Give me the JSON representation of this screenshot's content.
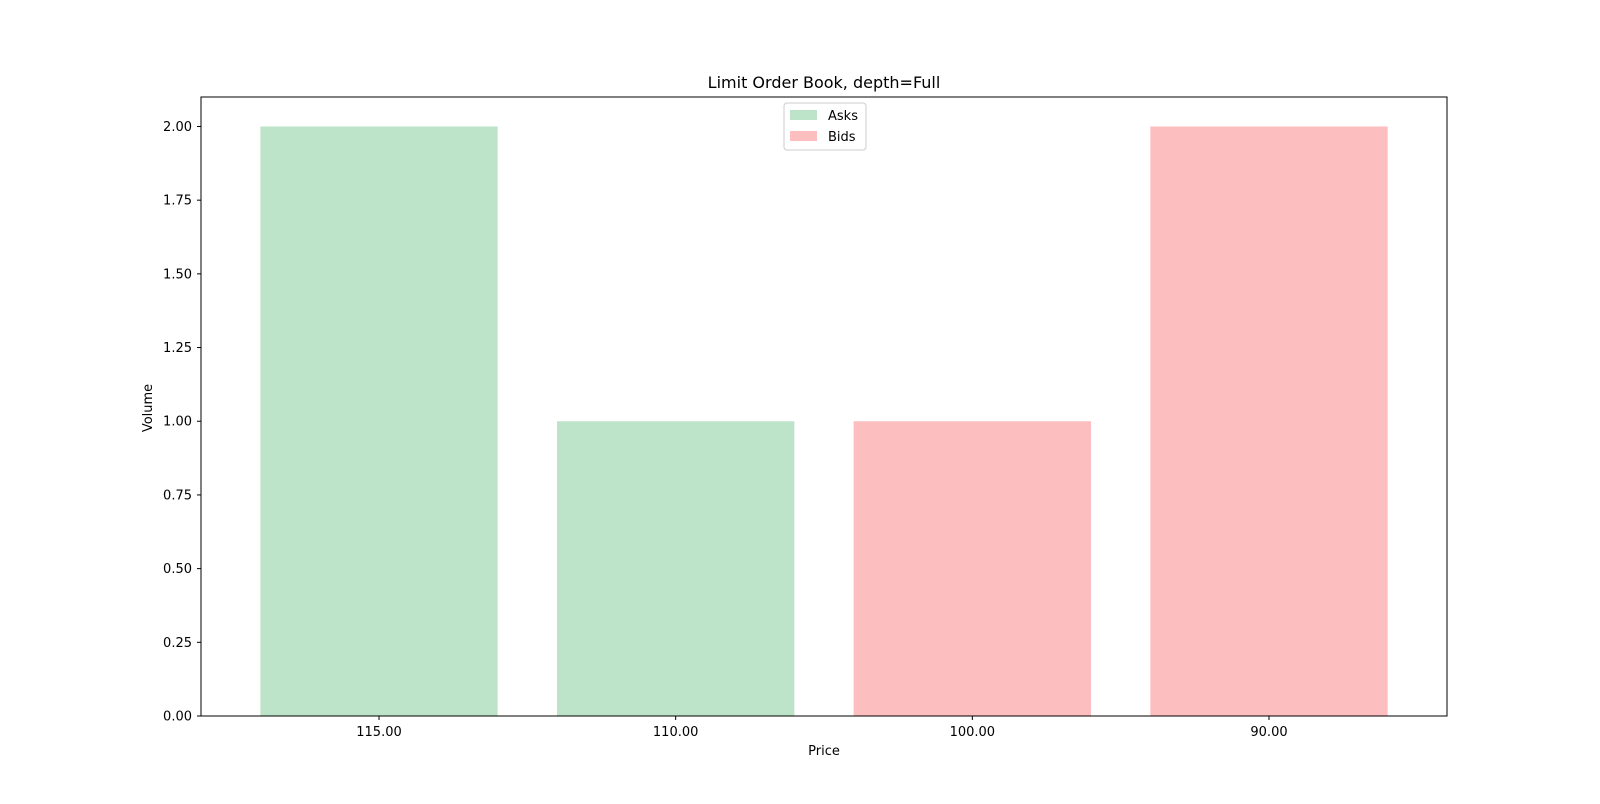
{
  "chart_data": {
    "type": "bar",
    "title": "Limit Order Book, depth=Full",
    "xlabel": "Price",
    "ylabel": "Volume",
    "categories": [
      "115.00",
      "110.00",
      "100.00",
      "90.00"
    ],
    "series": [
      {
        "name": "Asks",
        "color": "#bde4c8",
        "values": [
          2,
          1,
          null,
          null
        ]
      },
      {
        "name": "Bids",
        "color": "#fdbec0",
        "values": [
          null,
          null,
          1,
          2
        ]
      }
    ],
    "ylim": [
      0,
      2.1
    ],
    "yticks": [
      0,
      0.25,
      0.5,
      0.75,
      1.0,
      1.25,
      1.5,
      1.75,
      2.0
    ],
    "ytick_labels": [
      "0.00",
      "0.25",
      "0.50",
      "0.75",
      "1.00",
      "1.25",
      "1.50",
      "1.75",
      "2.00"
    ],
    "grid": false,
    "legend_position": "upper center"
  }
}
